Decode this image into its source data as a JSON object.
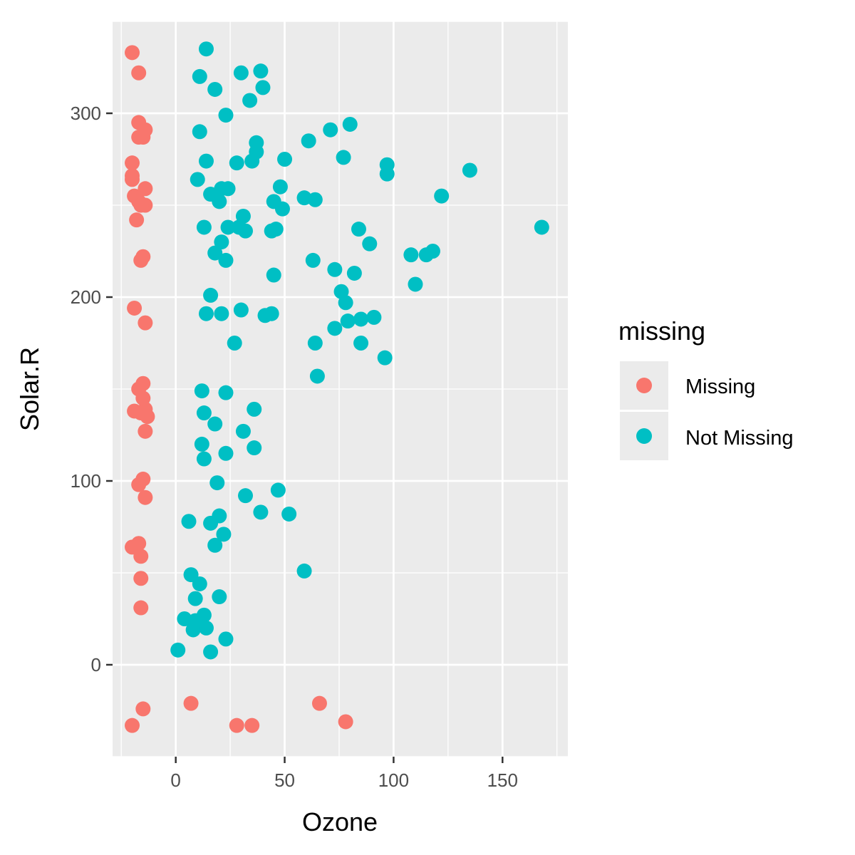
{
  "chart_data": {
    "type": "scatter",
    "title": "",
    "xlabel": "Ozone",
    "ylabel": "Solar.R",
    "xlim": [
      -29,
      180
    ],
    "ylim": [
      -50,
      350
    ],
    "x_ticks": [
      0,
      50,
      100,
      150
    ],
    "y_ticks": [
      0,
      100,
      200,
      300
    ],
    "grid": true,
    "legend": {
      "title": "missing",
      "position": "right"
    },
    "series": [
      {
        "name": "Missing",
        "color": "#F8766D",
        "points": [
          [
            -20,
            333
          ],
          [
            -17,
            322
          ],
          [
            -17,
            295
          ],
          [
            -14,
            291
          ],
          [
            -17,
            287
          ],
          [
            -15,
            287
          ],
          [
            -20,
            273
          ],
          [
            -20,
            266
          ],
          [
            -20,
            264
          ],
          [
            -14,
            259
          ],
          [
            -19,
            255
          ],
          [
            -17,
            252
          ],
          [
            -14,
            250
          ],
          [
            -16,
            250
          ],
          [
            -18,
            242
          ],
          [
            -15,
            222
          ],
          [
            -16,
            220
          ],
          [
            -19,
            194
          ],
          [
            -14,
            186
          ],
          [
            -15,
            153
          ],
          [
            -17,
            150
          ],
          [
            -15,
            145
          ],
          [
            -19,
            138
          ],
          [
            -14,
            139
          ],
          [
            -16,
            137
          ],
          [
            -13,
            135
          ],
          [
            -14,
            127
          ],
          [
            -15,
            101
          ],
          [
            -17,
            98
          ],
          [
            -14,
            91
          ],
          [
            -17,
            66
          ],
          [
            -20,
            64
          ],
          [
            -16,
            59
          ],
          [
            -16,
            47
          ],
          [
            -16,
            31
          ],
          [
            -15,
            -24
          ],
          [
            -20,
            -33
          ],
          [
            7,
            -21
          ],
          [
            28,
            -33
          ],
          [
            35,
            -33
          ],
          [
            66,
            -21
          ],
          [
            78,
            -31
          ]
        ]
      },
      {
        "name": "Not Missing",
        "color": "#00BFC4",
        "points": [
          [
            14,
            335
          ],
          [
            11,
            320
          ],
          [
            30,
            322
          ],
          [
            39,
            323
          ],
          [
            40,
            314
          ],
          [
            18,
            313
          ],
          [
            34,
            307
          ],
          [
            23,
            299
          ],
          [
            11,
            290
          ],
          [
            37,
            284
          ],
          [
            37,
            279
          ],
          [
            28,
            273
          ],
          [
            35,
            274
          ],
          [
            14,
            274
          ],
          [
            50,
            275
          ],
          [
            61,
            285
          ],
          [
            71,
            291
          ],
          [
            80,
            294
          ],
          [
            77,
            276
          ],
          [
            97,
            272
          ],
          [
            97,
            267
          ],
          [
            135,
            269
          ],
          [
            122,
            255
          ],
          [
            168,
            238
          ],
          [
            10,
            264
          ],
          [
            16,
            256
          ],
          [
            21,
            259
          ],
          [
            24,
            259
          ],
          [
            20,
            252
          ],
          [
            48,
            260
          ],
          [
            45,
            252
          ],
          [
            49,
            248
          ],
          [
            59,
            254
          ],
          [
            64,
            253
          ],
          [
            31,
            244
          ],
          [
            24,
            238
          ],
          [
            29,
            238
          ],
          [
            32,
            236
          ],
          [
            13,
            238
          ],
          [
            44,
            236
          ],
          [
            46,
            237
          ],
          [
            84,
            237
          ],
          [
            89,
            229
          ],
          [
            108,
            223
          ],
          [
            115,
            223
          ],
          [
            118,
            225
          ],
          [
            110,
            207
          ],
          [
            21,
            230
          ],
          [
            18,
            224
          ],
          [
            23,
            220
          ],
          [
            45,
            212
          ],
          [
            63,
            220
          ],
          [
            73,
            215
          ],
          [
            82,
            213
          ],
          [
            76,
            203
          ],
          [
            78,
            197
          ],
          [
            16,
            201
          ],
          [
            14,
            191
          ],
          [
            21,
            191
          ],
          [
            30,
            193
          ],
          [
            41,
            190
          ],
          [
            44,
            191
          ],
          [
            79,
            187
          ],
          [
            85,
            188
          ],
          [
            91,
            189
          ],
          [
            73,
            183
          ],
          [
            64,
            175
          ],
          [
            85,
            175
          ],
          [
            27,
            175
          ],
          [
            96,
            167
          ],
          [
            65,
            157
          ],
          [
            12,
            149
          ],
          [
            23,
            148
          ],
          [
            13,
            137
          ],
          [
            36,
            139
          ],
          [
            18,
            131
          ],
          [
            31,
            127
          ],
          [
            12,
            120
          ],
          [
            13,
            112
          ],
          [
            23,
            115
          ],
          [
            36,
            118
          ],
          [
            19,
            99
          ],
          [
            32,
            92
          ],
          [
            47,
            95
          ],
          [
            39,
            83
          ],
          [
            52,
            82
          ],
          [
            6,
            78
          ],
          [
            16,
            77
          ],
          [
            20,
            81
          ],
          [
            22,
            71
          ],
          [
            18,
            65
          ],
          [
            59,
            51
          ],
          [
            7,
            49
          ],
          [
            11,
            44
          ],
          [
            9,
            36
          ],
          [
            20,
            37
          ],
          [
            4,
            25
          ],
          [
            9,
            24
          ],
          [
            13,
            27
          ],
          [
            8,
            19
          ],
          [
            14,
            20
          ],
          [
            23,
            14
          ],
          [
            1,
            8
          ],
          [
            16,
            7
          ]
        ]
      }
    ]
  }
}
